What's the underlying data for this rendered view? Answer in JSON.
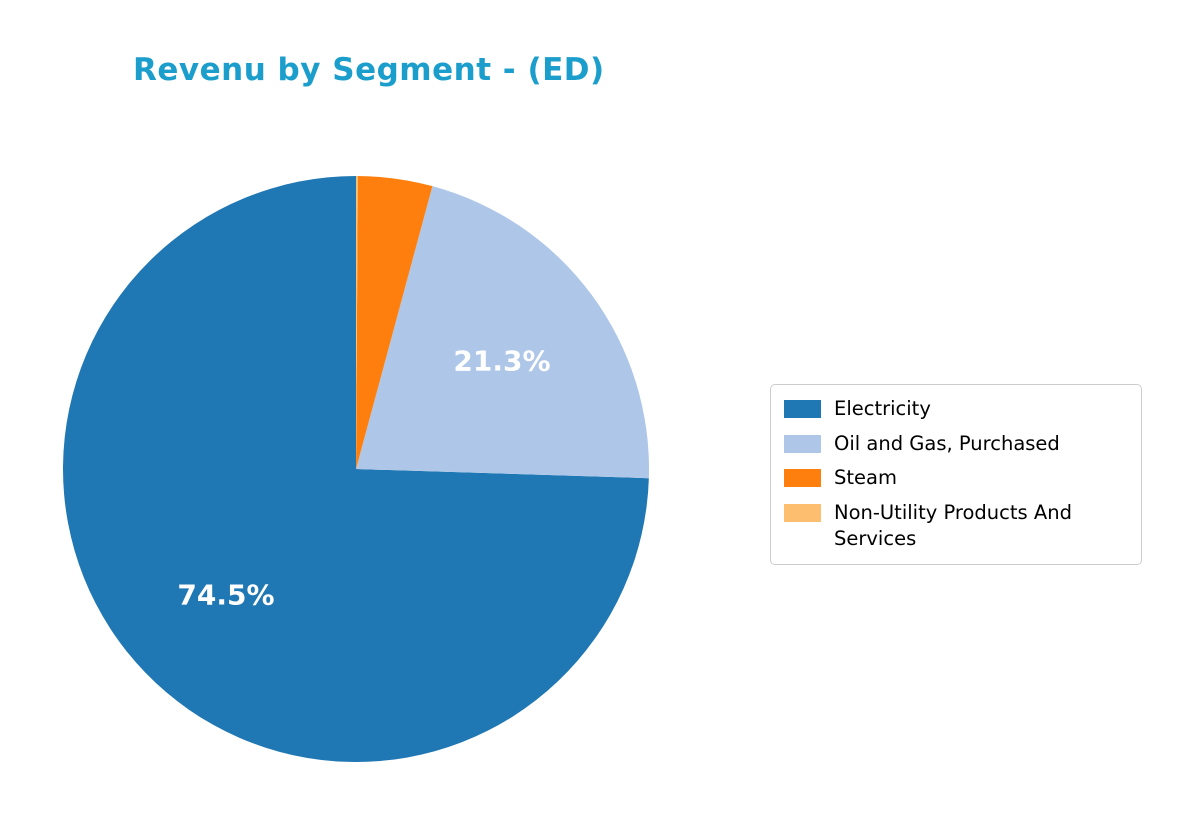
{
  "chart_data": {
    "type": "pie",
    "title": "Revenu by Segment - (ED)",
    "title_color": "#1b9ecb",
    "label_color": "#ffffff",
    "start_angle": 90,
    "counterclock": true,
    "legend_position": "right",
    "series": [
      {
        "name": "Electricity",
        "value": 74.5,
        "color": "#1f77b4",
        "label": "74.5%"
      },
      {
        "name": "Oil and Gas, Purchased",
        "value": 21.3,
        "color": "#aec7e8",
        "label": "21.3%"
      },
      {
        "name": "Steam",
        "value": 4.1,
        "color": "#ff7f0e",
        "label": ""
      },
      {
        "name": "Non-Utility Products And Services",
        "value": 0.1,
        "color": "#fdbf6f",
        "label": ""
      }
    ]
  }
}
